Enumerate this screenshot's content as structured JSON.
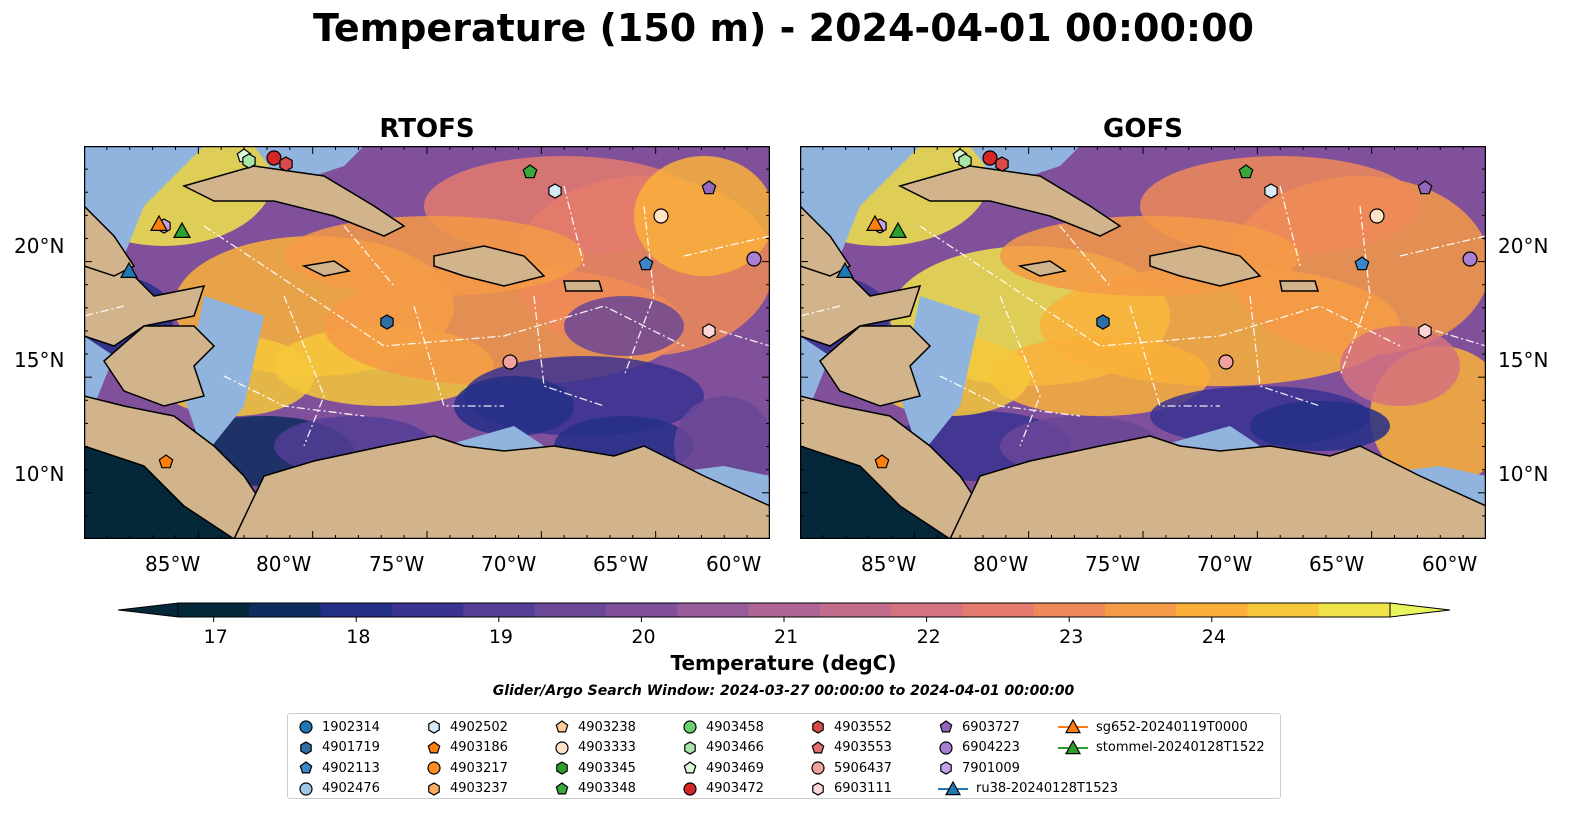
{
  "title": "Temperature (150 m) - 2024-04-01 00:00:00",
  "panels": [
    {
      "title": "RTOFS"
    },
    {
      "title": "GOFS"
    }
  ],
  "x_ticks": [
    "85°W",
    "80°W",
    "75°W",
    "70°W",
    "65°W",
    "60°W"
  ],
  "y_ticks": [
    "20°N",
    "15°N",
    "10°N"
  ],
  "colorbar": {
    "label": "Temperature (degC)",
    "ticks": [
      "17",
      "18",
      "19",
      "20",
      "21",
      "22",
      "23",
      "24"
    ],
    "colors": [
      "#04283a",
      "#0d2d5f",
      "#232f87",
      "#3a3392",
      "#533d97",
      "#6a4797",
      "#80519a",
      "#975b9b",
      "#ad6496",
      "#c36c8c",
      "#d5727f",
      "#e37a6d",
      "#ee8a59",
      "#f59a46",
      "#fab039",
      "#f6c83a",
      "#eee34a"
    ],
    "min_color": "#04283a",
    "max_color": "#e8f55e"
  },
  "search_window": "Glider/Argo Search Window: 2024-03-27 00:00:00 to 2024-04-01 00:00:00",
  "legend": [
    {
      "label": "1902314",
      "shape": "circle",
      "color": "#1f77b4"
    },
    {
      "label": "4901719",
      "shape": "hexagon",
      "color": "#2e6ea6"
    },
    {
      "label": "4902113",
      "shape": "pentagon",
      "color": "#3a86c8"
    },
    {
      "label": "4902476",
      "shape": "circle",
      "color": "#9fc8e8"
    },
    {
      "label": "4902502",
      "shape": "hexagon",
      "color": "#d6eaf8"
    },
    {
      "label": "4903186",
      "shape": "pentagon",
      "color": "#ff7f0e"
    },
    {
      "label": "4903217",
      "shape": "circle",
      "color": "#ff8c22"
    },
    {
      "label": "4903237",
      "shape": "hexagon",
      "color": "#ffad66"
    },
    {
      "label": "4903238",
      "shape": "pentagon",
      "color": "#ffcc99"
    },
    {
      "label": "4903333",
      "shape": "circle",
      "color": "#ffe3c6"
    },
    {
      "label": "4903345",
      "shape": "hexagon",
      "color": "#2ca02c"
    },
    {
      "label": "4903348",
      "shape": "pentagon",
      "color": "#3aa83a"
    },
    {
      "label": "4903458",
      "shape": "circle",
      "color": "#6bcf6b"
    },
    {
      "label": "4903466",
      "shape": "hexagon",
      "color": "#a6e6a6"
    },
    {
      "label": "4903469",
      "shape": "pentagon",
      "color": "#d8f6d8"
    },
    {
      "label": "4903472",
      "shape": "circle",
      "color": "#d62728"
    },
    {
      "label": "4903552",
      "shape": "hexagon",
      "color": "#d94a4a"
    },
    {
      "label": "4903553",
      "shape": "pentagon",
      "color": "#e36e6e"
    },
    {
      "label": "5906437",
      "shape": "circle",
      "color": "#f2a0a0"
    },
    {
      "label": "6903111",
      "shape": "hexagon",
      "color": "#fcd6d6"
    },
    {
      "label": "6903727",
      "shape": "pentagon",
      "color": "#9467bd"
    },
    {
      "label": "6904223",
      "shape": "circle",
      "color": "#a97fd2"
    },
    {
      "label": "7901009",
      "shape": "hexagon",
      "color": "#c2a3e6"
    },
    {
      "label": "ru38-20240128T1523",
      "shape": "triangle",
      "color": "#1f77b4"
    },
    {
      "label": "sg652-20240119T0000",
      "shape": "triangle",
      "color": "#ff7f0e"
    },
    {
      "label": "stommel-20240128T1522",
      "shape": "triangle",
      "color": "#2ca02c"
    }
  ],
  "map_colors": {
    "land": "#d2b48c",
    "shelf": "#91b4de",
    "deep": "#04283a",
    "contour": "#ffffff"
  }
}
